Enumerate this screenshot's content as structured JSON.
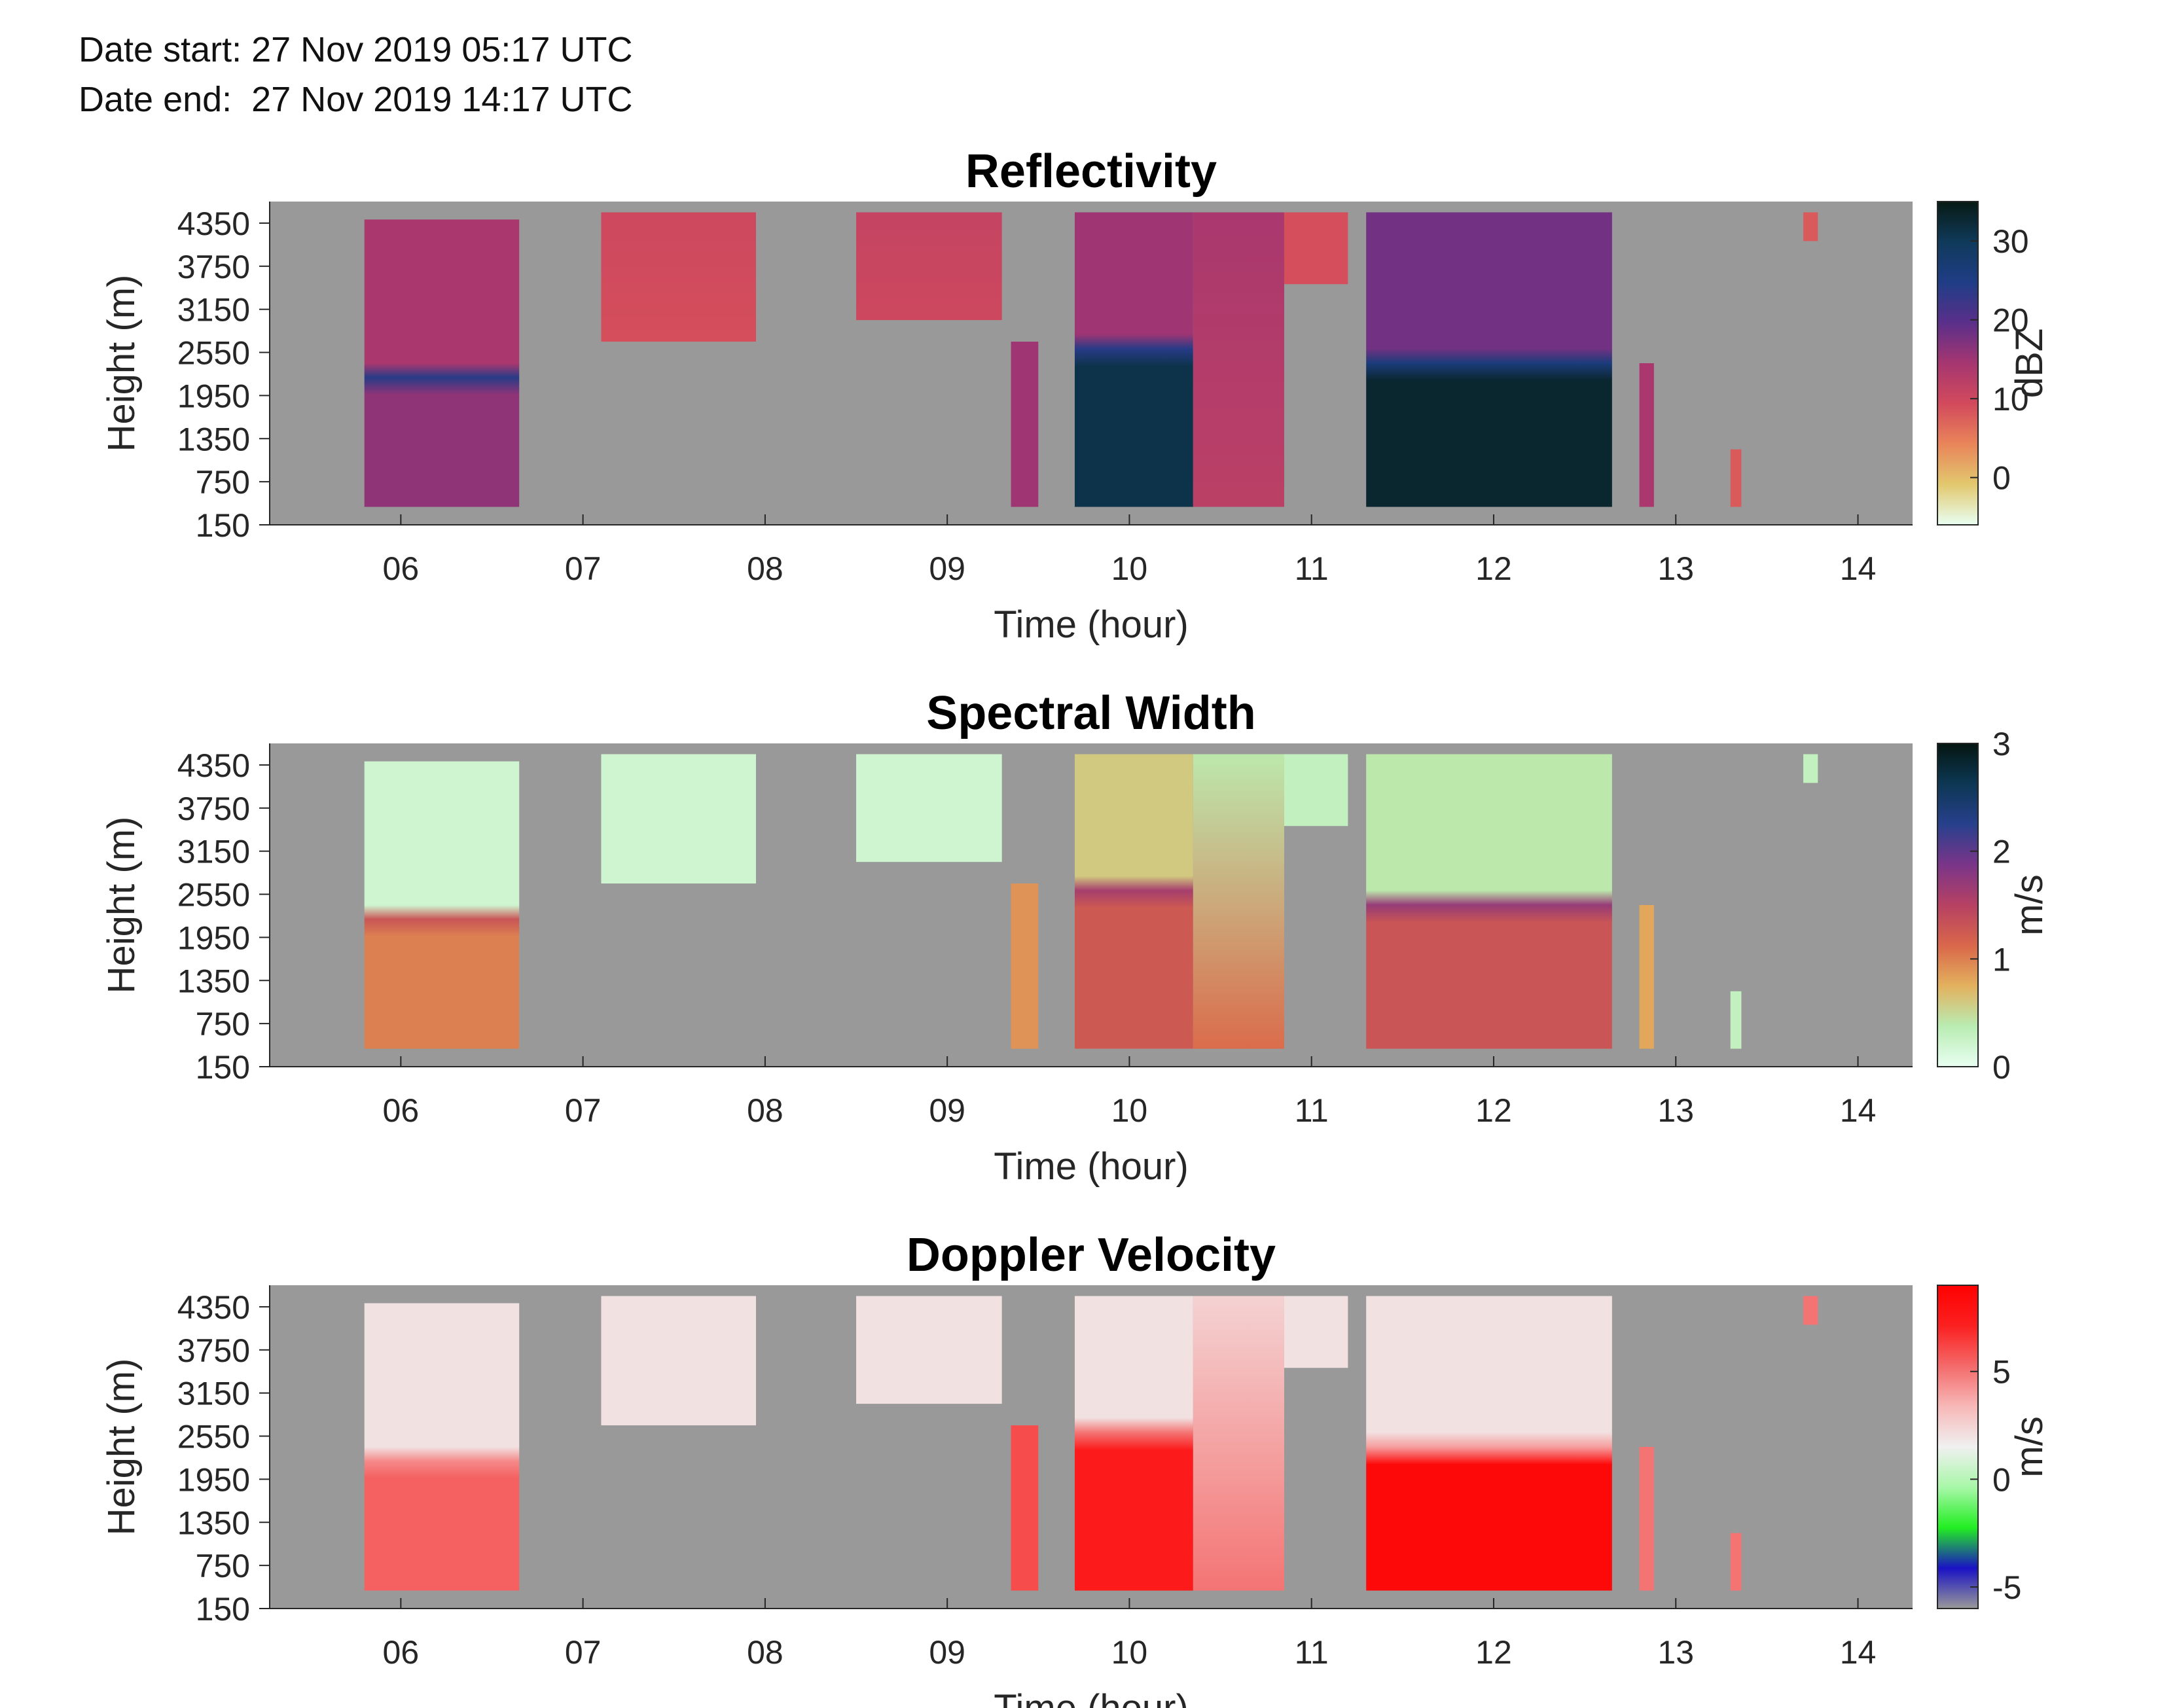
{
  "header": {
    "date_start": "Date start: 27 Nov 2019 05:17 UTC",
    "date_end": "Date end:  27 Nov 2019 14:17 UTC"
  },
  "colors": {
    "background": "#999999",
    "reflectivity_scale": [
      "#e8fff2",
      "#e2c86e",
      "#e9855a",
      "#d24a5c",
      "#a63670",
      "#5a2f8a",
      "#1f3d86",
      "#0f3a5a",
      "#071a14"
    ],
    "spectral_width_scale": [
      "#e8fff2",
      "#b9ecb2",
      "#e3b15e",
      "#d9674a",
      "#b64163",
      "#7a3589",
      "#27408c",
      "#0c3753",
      "#041611"
    ],
    "doppler_scale": [
      "#999999",
      "#1a12c4",
      "#22ee22",
      "#a8f7a8",
      "#f0f0f0",
      "#f7b8b8",
      "#f46a6a",
      "#fb2020",
      "#ff0000"
    ]
  },
  "chart_data": [
    {
      "type": "heatmap",
      "title": "Reflectivity",
      "xlabel": "Time (hour)",
      "ylabel": "Height (m)",
      "x_ticks": [
        "06",
        "07",
        "08",
        "09",
        "10",
        "11",
        "12",
        "13",
        "14"
      ],
      "y_ticks": [
        "150",
        "750",
        "1350",
        "1950",
        "2550",
        "3150",
        "3750",
        "4350"
      ],
      "xlim": [
        5.28,
        14.3
      ],
      "ylim": [
        150,
        4650
      ],
      "colorbar": {
        "label": "dBZ",
        "ticks": [
          "0",
          "10",
          "20",
          "30"
        ],
        "range": [
          -6,
          35
        ]
      },
      "echo_segments": [
        {
          "t_start": 5.8,
          "t_end": 6.65,
          "h_top": 4400,
          "h_bottom": 400,
          "lower_value": 16,
          "upper_value": 14,
          "band_height": 2200,
          "band_value": 24
        },
        {
          "t_start": 7.1,
          "t_end": 7.95,
          "h_top": 4500,
          "h_bottom": 2700,
          "lower_value": 9,
          "upper_value": 10
        },
        {
          "t_start": 8.5,
          "t_end": 9.3,
          "h_top": 4500,
          "h_bottom": 3000,
          "lower_value": 10,
          "upper_value": 11
        },
        {
          "t_start": 9.35,
          "t_end": 9.5,
          "h_top": 2700,
          "h_bottom": 400,
          "lower_value": 15,
          "upper_value": 15
        },
        {
          "t_start": 9.7,
          "t_end": 10.35,
          "h_top": 4500,
          "h_bottom": 400,
          "lower_value": 31,
          "upper_value": 15,
          "band_height": 2600,
          "band_value": 24
        },
        {
          "t_start": 10.35,
          "t_end": 10.85,
          "h_top": 4500,
          "h_bottom": 400,
          "lower_value": 12,
          "upper_value": 14
        },
        {
          "t_start": 10.85,
          "t_end": 11.2,
          "h_top": 4500,
          "h_bottom": 3500,
          "lower_value": 9,
          "upper_value": 9
        },
        {
          "t_start": 11.3,
          "t_end": 12.65,
          "h_top": 4500,
          "h_bottom": 400,
          "lower_value": 33,
          "upper_value": 18,
          "band_height": 2400,
          "band_value": 26
        },
        {
          "t_start": 12.8,
          "t_end": 12.88,
          "h_top": 2400,
          "h_bottom": 400,
          "lower_value": 14,
          "upper_value": 14
        },
        {
          "t_start": 13.3,
          "t_end": 13.36,
          "h_top": 1200,
          "h_bottom": 400,
          "lower_value": 8,
          "upper_value": 8
        },
        {
          "t_start": 13.7,
          "t_end": 13.78,
          "h_top": 4500,
          "h_bottom": 4100,
          "lower_value": 8,
          "upper_value": 8
        }
      ]
    },
    {
      "type": "heatmap",
      "title": "Spectral Width",
      "xlabel": "Time (hour)",
      "ylabel": "Height (m)",
      "x_ticks": [
        "06",
        "07",
        "08",
        "09",
        "10",
        "11",
        "12",
        "13",
        "14"
      ],
      "y_ticks": [
        "150",
        "750",
        "1350",
        "1950",
        "2550",
        "3150",
        "3750",
        "4350"
      ],
      "xlim": [
        5.28,
        14.3
      ],
      "ylim": [
        150,
        4650
      ],
      "colorbar": {
        "label": "m/s",
        "ticks": [
          "0",
          "1",
          "2",
          "3"
        ],
        "range": [
          0,
          3
        ]
      },
      "echo_segments": [
        {
          "t_start": 5.8,
          "t_end": 6.65,
          "h_top": 4400,
          "h_bottom": 400,
          "lower_value": 1.0,
          "upper_value": 0.2,
          "band_height": 2200,
          "band_value": 1.3
        },
        {
          "t_start": 7.1,
          "t_end": 7.95,
          "h_top": 4500,
          "h_bottom": 2700,
          "lower_value": 0.2,
          "upper_value": 0.2
        },
        {
          "t_start": 8.5,
          "t_end": 9.3,
          "h_top": 4500,
          "h_bottom": 3000,
          "lower_value": 0.2,
          "upper_value": 0.2
        },
        {
          "t_start": 9.35,
          "t_end": 9.5,
          "h_top": 2700,
          "h_bottom": 400,
          "lower_value": 0.9,
          "upper_value": 0.9
        },
        {
          "t_start": 9.7,
          "t_end": 10.35,
          "h_top": 4500,
          "h_bottom": 400,
          "lower_value": 1.25,
          "upper_value": 0.6,
          "band_height": 2600,
          "band_value": 1.6
        },
        {
          "t_start": 10.35,
          "t_end": 10.85,
          "h_top": 4500,
          "h_bottom": 400,
          "lower_value": 1.1,
          "upper_value": 0.4
        },
        {
          "t_start": 10.85,
          "t_end": 11.2,
          "h_top": 4500,
          "h_bottom": 3500,
          "lower_value": 0.3,
          "upper_value": 0.3
        },
        {
          "t_start": 11.3,
          "t_end": 12.65,
          "h_top": 4500,
          "h_bottom": 400,
          "lower_value": 1.3,
          "upper_value": 0.4,
          "band_height": 2400,
          "band_value": 1.7
        },
        {
          "t_start": 12.8,
          "t_end": 12.88,
          "h_top": 2400,
          "h_bottom": 400,
          "lower_value": 0.8,
          "upper_value": 0.8
        },
        {
          "t_start": 13.3,
          "t_end": 13.36,
          "h_top": 1200,
          "h_bottom": 400,
          "lower_value": 0.3,
          "upper_value": 0.3
        },
        {
          "t_start": 13.7,
          "t_end": 13.78,
          "h_top": 4500,
          "h_bottom": 4100,
          "lower_value": 0.3,
          "upper_value": 0.3
        }
      ]
    },
    {
      "type": "heatmap",
      "title": "Doppler Velocity",
      "xlabel": "Time (hour)",
      "ylabel": "Height (m)",
      "x_ticks": [
        "06",
        "07",
        "08",
        "09",
        "10",
        "11",
        "12",
        "13",
        "14"
      ],
      "y_ticks": [
        "150",
        "750",
        "1350",
        "1950",
        "2550",
        "3150",
        "3750",
        "4350"
      ],
      "xlim": [
        5.28,
        14.3
      ],
      "ylim": [
        150,
        4650
      ],
      "colorbar": {
        "label": "m/s",
        "ticks": [
          "-5",
          "0",
          "5"
        ],
        "range": [
          -6,
          9
        ]
      },
      "echo_segments": [
        {
          "t_start": 5.8,
          "t_end": 6.65,
          "h_top": 4400,
          "h_bottom": 400,
          "lower_value": 5.5,
          "upper_value": 2.0,
          "band_height": 2200,
          "band_value": 4.5
        },
        {
          "t_start": 7.1,
          "t_end": 7.95,
          "h_top": 4500,
          "h_bottom": 2700,
          "lower_value": 2.0,
          "upper_value": 2.0
        },
        {
          "t_start": 8.5,
          "t_end": 9.3,
          "h_top": 4500,
          "h_bottom": 3000,
          "lower_value": 2.0,
          "upper_value": 2.0
        },
        {
          "t_start": 9.35,
          "t_end": 9.5,
          "h_top": 2700,
          "h_bottom": 400,
          "lower_value": 6.0,
          "upper_value": 6.0
        },
        {
          "t_start": 9.7,
          "t_end": 10.35,
          "h_top": 4500,
          "h_bottom": 400,
          "lower_value": 7.5,
          "upper_value": 2.0,
          "band_height": 2600,
          "band_value": 5.0
        },
        {
          "t_start": 10.35,
          "t_end": 10.85,
          "h_top": 4500,
          "h_bottom": 400,
          "lower_value": 5.0,
          "upper_value": 2.5
        },
        {
          "t_start": 10.85,
          "t_end": 11.2,
          "h_top": 4500,
          "h_bottom": 3500,
          "lower_value": 2.0,
          "upper_value": 2.0
        },
        {
          "t_start": 11.3,
          "t_end": 12.65,
          "h_top": 4500,
          "h_bottom": 400,
          "lower_value": 8.5,
          "upper_value": 2.0,
          "band_height": 2400,
          "band_value": 4.0
        },
        {
          "t_start": 12.8,
          "t_end": 12.88,
          "h_top": 2400,
          "h_bottom": 400,
          "lower_value": 5.0,
          "upper_value": 5.0
        },
        {
          "t_start": 13.3,
          "t_end": 13.36,
          "h_top": 1200,
          "h_bottom": 400,
          "lower_value": 5.0,
          "upper_value": 5.0
        },
        {
          "t_start": 13.7,
          "t_end": 13.78,
          "h_top": 4500,
          "h_bottom": 4100,
          "lower_value": 5.0,
          "upper_value": 5.0
        }
      ]
    }
  ]
}
